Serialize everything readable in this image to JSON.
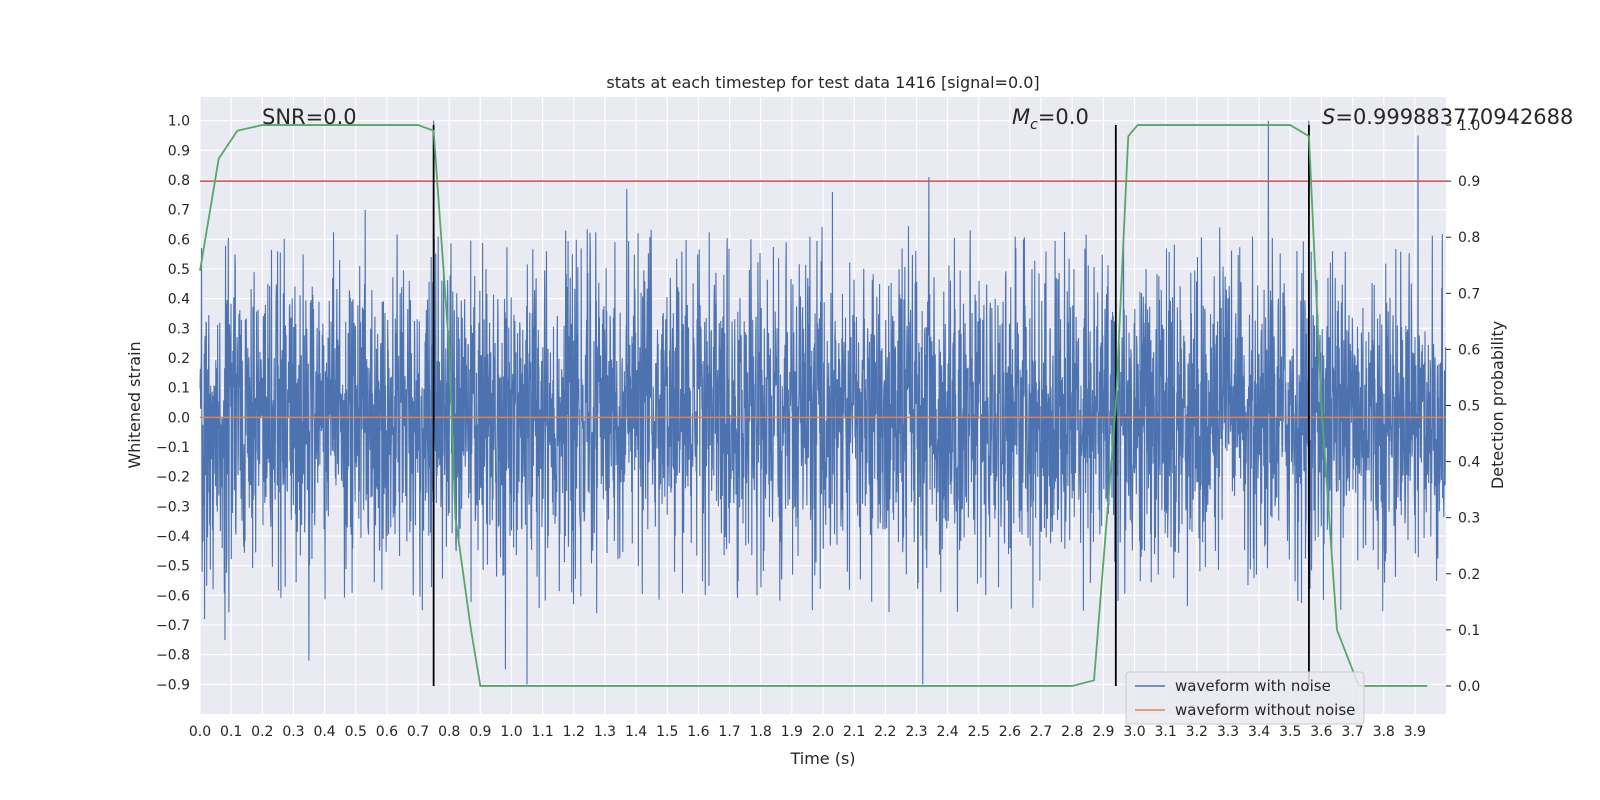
{
  "chart_data": {
    "type": "line",
    "title": "stats at each timestep for test data 1416 [signal=0.0]",
    "xlabel": "Time (s)",
    "ylabel": "Whitened strain",
    "y2label": "Detection probability",
    "xlim": [
      0.0,
      4.0
    ],
    "ylim": [
      -1.0,
      1.08
    ],
    "y2lim": [
      -0.05,
      1.05
    ],
    "grid": true,
    "legend_position": "lower right",
    "x_ticks": [
      "0.0",
      "0.1",
      "0.2",
      "0.3",
      "0.4",
      "0.5",
      "0.6",
      "0.7",
      "0.8",
      "0.9",
      "1.0",
      "1.1",
      "1.2",
      "1.3",
      "1.4",
      "1.5",
      "1.6",
      "1.7",
      "1.8",
      "1.9",
      "2.0",
      "2.1",
      "2.2",
      "2.3",
      "2.4",
      "2.5",
      "2.6",
      "2.7",
      "2.8",
      "2.9",
      "3.0",
      "3.1",
      "3.2",
      "3.3",
      "3.4",
      "3.5",
      "3.6",
      "3.7",
      "3.8",
      "3.9"
    ],
    "y_ticks": [
      "1.0",
      "0.9",
      "0.8",
      "0.7",
      "0.6",
      "0.5",
      "0.4",
      "0.3",
      "0.2",
      "0.1",
      "0.0",
      "−0.1",
      "−0.2",
      "−0.3",
      "−0.4",
      "−0.5",
      "−0.6",
      "−0.7",
      "−0.8",
      "−0.9"
    ],
    "y2_ticks": [
      "1.0",
      "0.9",
      "0.8",
      "0.7",
      "0.6",
      "0.5",
      "0.4",
      "0.3",
      "0.2",
      "0.1",
      "0.0"
    ],
    "annotations": {
      "snr": "SNR=0.0",
      "mc_symbol": "M",
      "mc_sub": "c",
      "mc_value": "=0.0",
      "s_symbol": "S",
      "s_value": "=0.999883770942688"
    },
    "threshold": {
      "value": 0.9,
      "axis": "y2",
      "color": "#c44e52"
    },
    "vertical_markers": [
      0.75,
      2.94,
      3.56
    ],
    "noisy_series": {
      "name": "waveform with noise",
      "color": "#4c72b0",
      "sample_count": 4096,
      "amplitude_envelope": 0.95,
      "peaks": [
        {
          "x": 0.015,
          "y": 0.72
        },
        {
          "x": 0.015,
          "y": -0.68
        },
        {
          "x": 0.08,
          "y": -0.75
        },
        {
          "x": 0.35,
          "y": -0.82
        },
        {
          "x": 0.53,
          "y": 0.7
        },
        {
          "x": 0.75,
          "y": 1.0
        },
        {
          "x": 0.98,
          "y": -0.85
        },
        {
          "x": 1.05,
          "y": -0.9
        },
        {
          "x": 1.37,
          "y": 0.77
        },
        {
          "x": 2.03,
          "y": 0.76
        },
        {
          "x": 2.34,
          "y": 0.81
        },
        {
          "x": 2.32,
          "y": -0.9
        },
        {
          "x": 3.43,
          "y": 1.0
        },
        {
          "x": 3.56,
          "y": 1.0
        },
        {
          "x": 3.91,
          "y": 0.95
        }
      ]
    },
    "clean_series": {
      "name": "waveform without noise",
      "color": "#dd8452",
      "y": 0.0
    },
    "probability_series": {
      "name": "",
      "color": "#55a868",
      "x": [
        0.0,
        0.06,
        0.12,
        0.2,
        0.3,
        0.45,
        0.6,
        0.7,
        0.75,
        0.8,
        0.82,
        0.87,
        0.9,
        1.0,
        1.5,
        2.0,
        2.5,
        2.8,
        2.87,
        2.94,
        2.98,
        3.01,
        3.07,
        3.2,
        3.35,
        3.5,
        3.56,
        3.6,
        3.65,
        3.72,
        3.8,
        3.94
      ],
      "y": [
        0.74,
        0.94,
        0.99,
        1.0,
        1.0,
        1.0,
        1.0,
        1.0,
        0.99,
        0.6,
        0.3,
        0.1,
        0.0,
        0.0,
        0.0,
        0.0,
        0.0,
        0.0,
        0.01,
        0.5,
        0.98,
        1.0,
        1.0,
        1.0,
        1.0,
        1.0,
        0.98,
        0.5,
        0.1,
        0.0,
        0.0,
        0.0
      ]
    },
    "legend": [
      "waveform with noise",
      "waveform without noise"
    ]
  }
}
